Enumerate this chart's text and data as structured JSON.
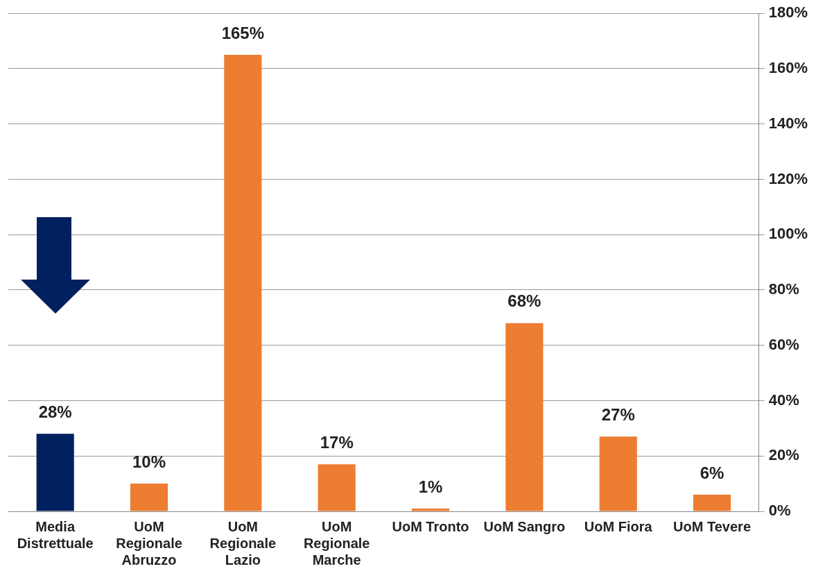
{
  "chart_data": {
    "type": "bar",
    "categories": [
      "Media Distrettuale",
      "UoM Regionale Abruzzo",
      "UoM Regionale Lazio",
      "UoM Regionale Marche",
      "UoM Tronto",
      "UoM Sangro",
      "UoM Fiora",
      "UoM Tevere"
    ],
    "values": [
      28,
      10,
      165,
      17,
      1,
      68,
      27,
      6
    ],
    "colors": [
      "#002060",
      "#ed7d31",
      "#ed7d31",
      "#ed7d31",
      "#ed7d31",
      "#ed7d31",
      "#ed7d31",
      "#ed7d31"
    ],
    "value_labels": [
      "28%",
      "10%",
      "165%",
      "17%",
      "1%",
      "68%",
      "27%",
      "6%"
    ],
    "ylim": [
      0,
      180
    ],
    "yticks": [
      {
        "value": 0,
        "label": "0%"
      },
      {
        "value": 20,
        "label": "20%"
      },
      {
        "value": 40,
        "label": "40%"
      },
      {
        "value": 60,
        "label": "60%"
      },
      {
        "value": 80,
        "label": "80%"
      },
      {
        "value": 100,
        "label": "100%"
      },
      {
        "value": 120,
        "label": "120%"
      },
      {
        "value": 140,
        "label": "140%"
      },
      {
        "value": 160,
        "label": "160%"
      },
      {
        "value": 180,
        "label": "180%"
      }
    ],
    "grid": "y"
  }
}
